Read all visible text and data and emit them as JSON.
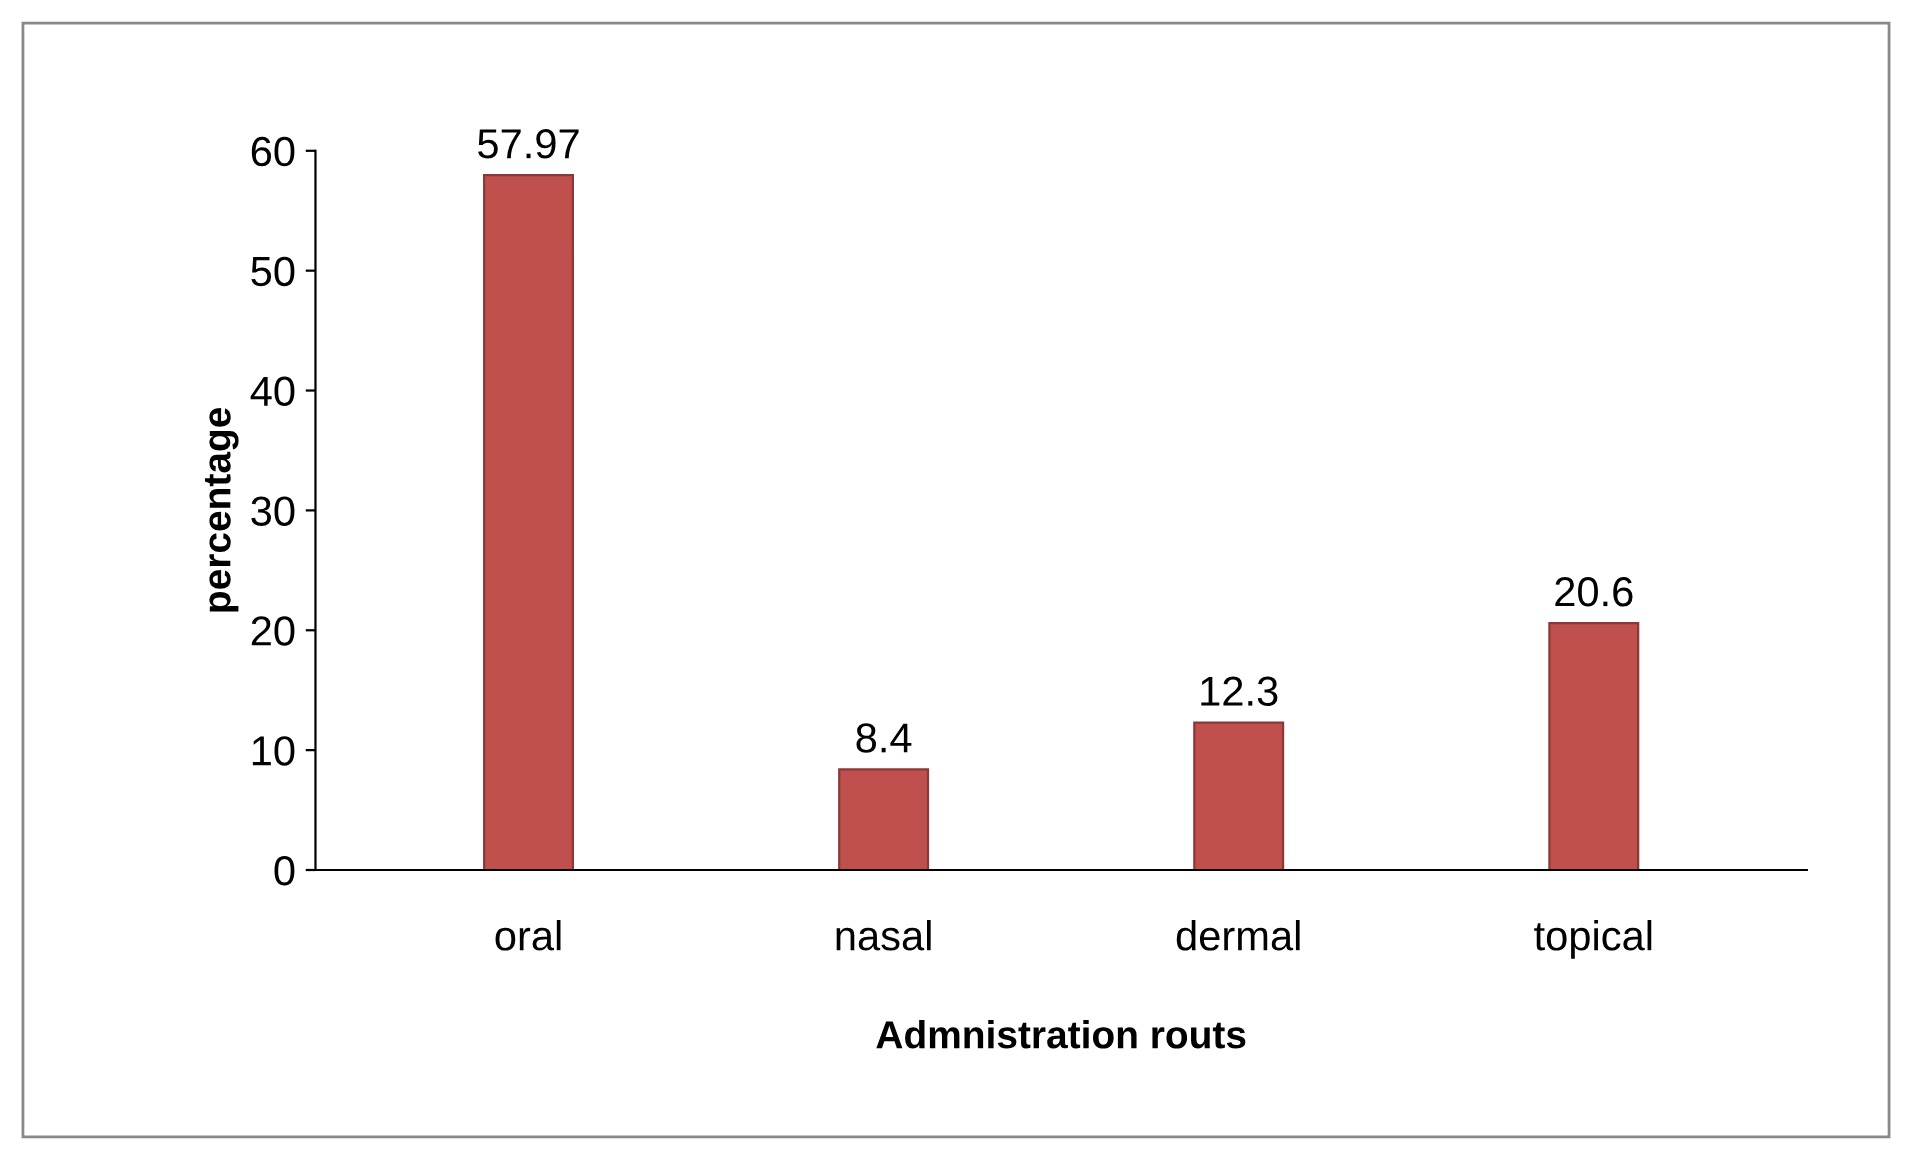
{
  "chart_data": {
    "type": "bar",
    "xlabel": "Admnistration routs",
    "ylabel": "percentage",
    "categories": [
      "oral",
      "nasal",
      "dermal",
      "topical"
    ],
    "values": [
      57.97,
      8.4,
      12.3,
      20.6
    ],
    "color": "#c0504d",
    "ylim": [
      0,
      60
    ],
    "yticks": [
      0,
      10,
      20,
      30,
      40,
      50,
      60
    ],
    "grid": false,
    "data_labels": true
  }
}
